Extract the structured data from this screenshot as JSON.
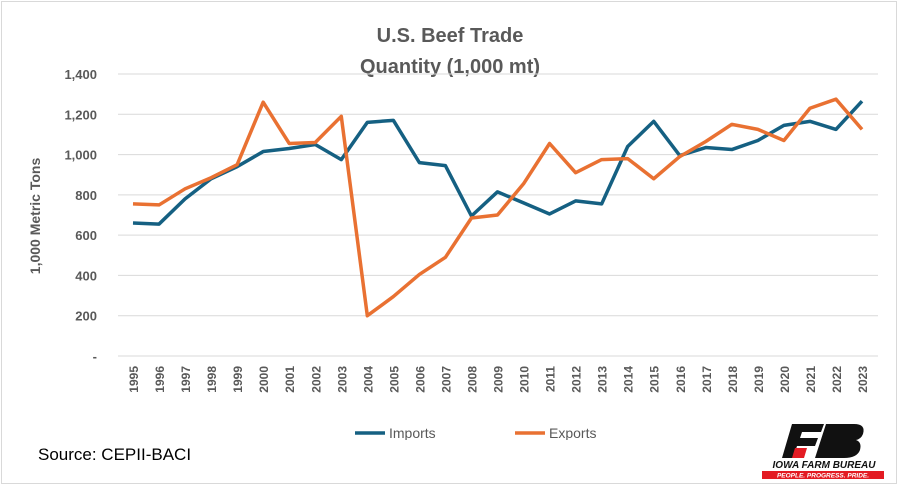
{
  "chart_data": {
    "type": "line",
    "title": "U.S. Beef Trade",
    "subtitle": "Quantity (1,000 mt)",
    "xlabel": "",
    "ylabel": "1,000 Metric Tons",
    "ylim": [
      0,
      1400
    ],
    "yticks": [
      0,
      200,
      400,
      600,
      800,
      1000,
      1200,
      1400
    ],
    "ytick_labels": [
      "-",
      "200",
      "400",
      "600",
      "800",
      "1,000",
      "1,200",
      "1,400"
    ],
    "grid": true,
    "legend_position": "bottom",
    "categories": [
      "1995",
      "1996",
      "1997",
      "1998",
      "1999",
      "2000",
      "2001",
      "2002",
      "2003",
      "2004",
      "2005",
      "2006",
      "2007",
      "2008",
      "2009",
      "2010",
      "2011",
      "2012",
      "2013",
      "2014",
      "2015",
      "2016",
      "2017",
      "2018",
      "2019",
      "2020",
      "2021",
      "2022",
      "2023"
    ],
    "series": [
      {
        "name": "Imports",
        "color": "#156082",
        "values": [
          660,
          655,
          780,
          880,
          940,
          1015,
          1030,
          1050,
          975,
          1160,
          1170,
          960,
          945,
          695,
          815,
          760,
          705,
          770,
          755,
          1040,
          1165,
          995,
          1035,
          1025,
          1070,
          1145,
          1165,
          1125,
          1265
        ]
      },
      {
        "name": "Exports",
        "color": "#E97132",
        "values": [
          755,
          750,
          830,
          885,
          950,
          1260,
          1055,
          1060,
          1190,
          200,
          295,
          405,
          490,
          685,
          700,
          855,
          1055,
          910,
          975,
          980,
          880,
          990,
          1065,
          1150,
          1125,
          1070,
          1230,
          1275,
          1125
        ]
      }
    ]
  },
  "source": "Source: CEPII-BACI",
  "logo": {
    "name": "IOWA FARM BUREAU",
    "tagline": "PEOPLE. PROGRESS. PRIDE."
  }
}
